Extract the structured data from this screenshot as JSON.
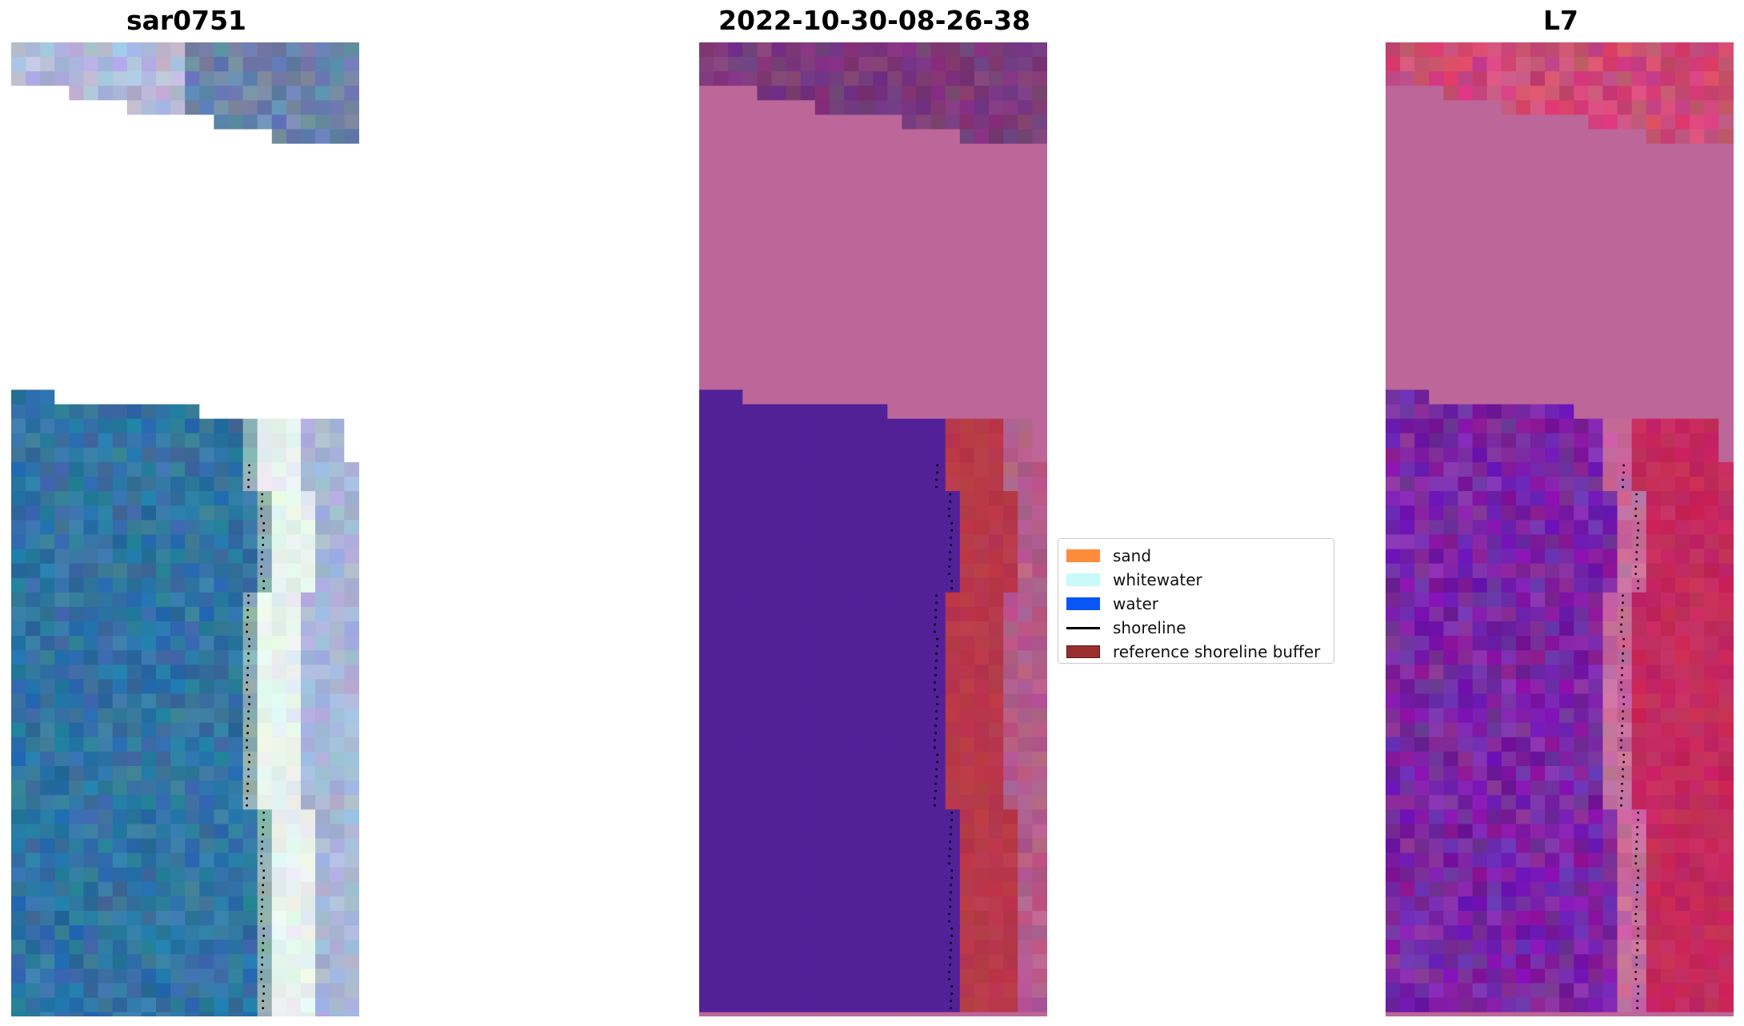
{
  "figure": {
    "panels": [
      {
        "title": "sar0751",
        "kind": "rgb"
      },
      {
        "title": "2022-10-30-08-26-38",
        "kind": "classification"
      },
      {
        "title": "L7",
        "kind": "index"
      }
    ],
    "legend": {
      "items": [
        {
          "label": "sand",
          "type": "patch",
          "color": "#ff8c3b"
        },
        {
          "label": "whitewater",
          "type": "patch",
          "color": "#c8fafa"
        },
        {
          "label": "water",
          "type": "patch",
          "color": "#0a55f5"
        },
        {
          "label": "shoreline",
          "type": "line",
          "color": "#000000"
        },
        {
          "label": "reference shoreline buffer",
          "type": "patch",
          "color": "#9a2e2e"
        }
      ]
    },
    "colors": {
      "ocean_blue": "#3174a3",
      "surf_white": "#e8f2ee",
      "cloud_mask_pink": "#bd6699",
      "classified_water": "#522198",
      "buffer_red": "#b8384a",
      "index_purple": "#7a25a5",
      "index_red": "#c42a5d"
    }
  }
}
